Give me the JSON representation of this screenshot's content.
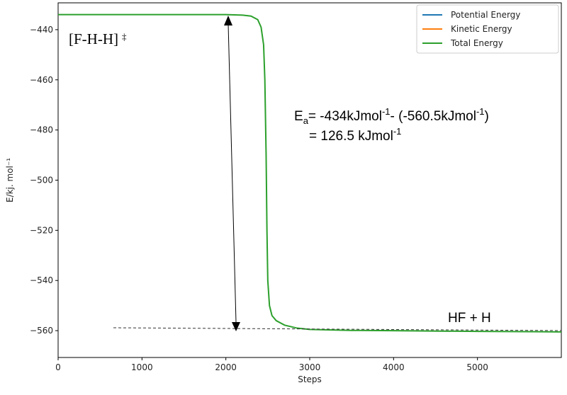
{
  "chart_data": {
    "type": "line",
    "x_label": "Steps",
    "y_label": "E/kj. mol⁻¹",
    "x": [
      0,
      1000,
      2000,
      2200,
      2300,
      2380,
      2420,
      2450,
      2465,
      2480,
      2490,
      2500,
      2520,
      2550,
      2600,
      2700,
      2850,
      3000,
      3500,
      4000,
      5000,
      6000
    ],
    "series": [
      {
        "name": "Potential Energy",
        "color": "#1f77b4",
        "values": [
          null,
          null,
          null,
          null,
          null,
          null,
          null,
          null,
          null,
          null,
          null,
          null,
          null,
          null,
          null,
          null,
          null,
          null,
          null,
          null,
          null,
          null
        ]
      },
      {
        "name": "Kinetic Energy",
        "color": "#ff7f0e",
        "values": [
          null,
          null,
          null,
          null,
          null,
          null,
          null,
          null,
          null,
          null,
          null,
          null,
          null,
          null,
          null,
          null,
          null,
          null,
          null,
          null,
          null,
          null
        ]
      },
      {
        "name": "Total Energy",
        "color": "#2ca02c",
        "values": [
          -434,
          -434,
          -434,
          -434.2,
          -434.6,
          -436,
          -439,
          -446,
          -460,
          -490,
          -520,
          -540,
          -550,
          -554,
          -556,
          -557.8,
          -559,
          -559.5,
          -559.9,
          -560,
          -560.3,
          -560.5
        ]
      }
    ],
    "xlim": [
      0,
      6000
    ],
    "xticks": [
      0,
      1000,
      2000,
      3000,
      4000,
      5000
    ],
    "ylim": [
      -570.7,
      -429.3
    ],
    "yticks": [
      {
        "value": -440,
        "label": "−440"
      },
      {
        "value": -460,
        "label": "−460"
      },
      {
        "value": -480,
        "label": "−480"
      },
      {
        "value": -500,
        "label": "−500"
      },
      {
        "value": -520,
        "label": "−520"
      },
      {
        "value": -540,
        "label": "−540"
      },
      {
        "value": -560,
        "label": "−560"
      }
    ],
    "legend": "upper right",
    "annotations": {
      "state": {
        "text": "[F-H-H]",
        "mark": "‡"
      },
      "ea_line1": [
        "E",
        "a",
        "= -434kJmol",
        "-1",
        "- (-560.5kJmol",
        "-1",
        ")"
      ],
      "ea_line2": [
        "= 126.5 kJmol",
        "-1"
      ],
      "products": "HF + H"
    }
  }
}
